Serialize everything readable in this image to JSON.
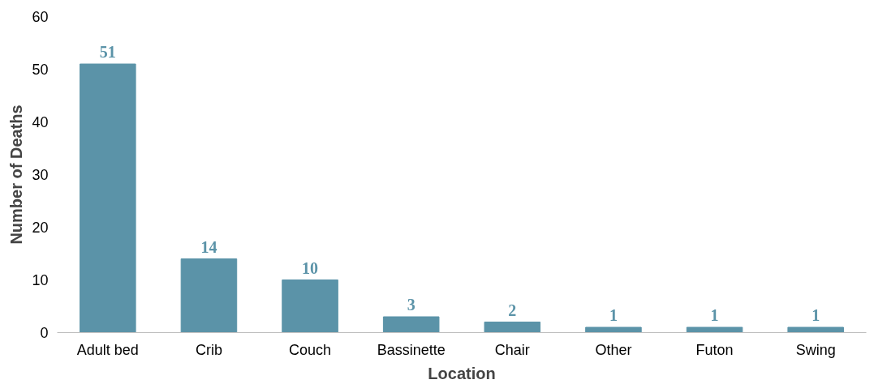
{
  "chart_data": {
    "type": "bar",
    "xlabel": "Location",
    "ylabel": "Number of Deaths",
    "categories": [
      "Adult bed",
      "Crib",
      "Couch",
      "Bassinette",
      "Chair",
      "Other",
      "Futon",
      "Swing"
    ],
    "values": [
      51,
      14,
      10,
      3,
      2,
      1,
      1,
      1
    ],
    "color": "#5b93a8",
    "ylim": [
      0,
      60
    ],
    "yticks": [
      0,
      10,
      20,
      30,
      40,
      50,
      60
    ],
    "grid": false,
    "data_labels": true
  }
}
